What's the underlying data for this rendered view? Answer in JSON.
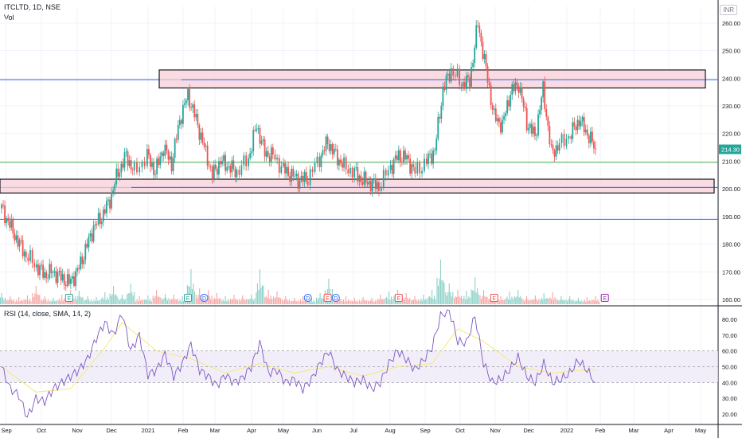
{
  "header": {
    "symbol": "ITCLTD, 1D, NSE",
    "volume_label": "Vol",
    "currency": "INR",
    "rsi_label": "RSI (14, close, SMA, 14, 2)"
  },
  "price_badge": "214.30",
  "colors": {
    "up": "#26a69a",
    "down": "#ef5350",
    "vol_up": "#8fd1c7",
    "vol_down": "#f5a6a4",
    "zone_fill": "#f8cfd8",
    "zone_border": "#131722",
    "blue_line": "#2962ff",
    "green_line": "#4caf50",
    "rsi_line": "#7e57c2",
    "rsi_ma": "#f5e97a",
    "rsi_band": "#ede7f6",
    "badge": "#26a69a",
    "earnings_up": "#26a69a",
    "earnings_down": "#ef5350",
    "earnings_future": "#9c27b0",
    "dividend": "#2962ff"
  },
  "chart_data": [
    {
      "type": "candlestick",
      "title": "ITCLTD, 1D, NSE",
      "x_labels": [
        "Sep",
        "Oct",
        "Nov",
        "Dec",
        "2021",
        "Feb",
        "Mar",
        "Apr",
        "May",
        "Jun",
        "Jul",
        "Aug",
        "Sep",
        "Oct",
        "Nov",
        "Dec",
        "2022",
        "Feb",
        "Mar",
        "Apr",
        "May"
      ],
      "y_ticks": [
        "260.00",
        "250.00",
        "240.00",
        "230.00",
        "220.00",
        "210.00",
        "200.00",
        "190.00",
        "180.00",
        "170.00",
        "160.00"
      ],
      "ylim": [
        158,
        266
      ],
      "series_close": [
        [
          "2020-09-01",
          193
        ],
        [
          "2020-09-08",
          187
        ],
        [
          "2020-09-15",
          181
        ],
        [
          "2020-09-22",
          176
        ],
        [
          "2020-10-01",
          172
        ],
        [
          "2020-10-08",
          169
        ],
        [
          "2020-10-15",
          170
        ],
        [
          "2020-10-22",
          168
        ],
        [
          "2020-10-29",
          166
        ],
        [
          "2020-11-05",
          170
        ],
        [
          "2020-11-12",
          178
        ],
        [
          "2020-11-19",
          186
        ],
        [
          "2020-11-26",
          190
        ],
        [
          "2020-12-03",
          196
        ],
        [
          "2020-12-10",
          206
        ],
        [
          "2020-12-17",
          212
        ],
        [
          "2020-12-24",
          206
        ],
        [
          "2021-01-04",
          212
        ],
        [
          "2021-01-11",
          206
        ],
        [
          "2021-01-18",
          215
        ],
        [
          "2021-01-25",
          209
        ],
        [
          "2021-02-01",
          225
        ],
        [
          "2021-02-08",
          234
        ],
        [
          "2021-02-15",
          225
        ],
        [
          "2021-02-22",
          215
        ],
        [
          "2021-03-01",
          205
        ],
        [
          "2021-03-08",
          210
        ],
        [
          "2021-03-15",
          208
        ],
        [
          "2021-03-22",
          206
        ],
        [
          "2021-04-01",
          211
        ],
        [
          "2021-04-08",
          223
        ],
        [
          "2021-04-15",
          213
        ],
        [
          "2021-04-22",
          212
        ],
        [
          "2021-05-01",
          207
        ],
        [
          "2021-05-08",
          205
        ],
        [
          "2021-05-15",
          203
        ],
        [
          "2021-05-22",
          204
        ],
        [
          "2021-06-01",
          211
        ],
        [
          "2021-06-08",
          217
        ],
        [
          "2021-06-15",
          212
        ],
        [
          "2021-06-22",
          208
        ],
        [
          "2021-07-01",
          206
        ],
        [
          "2021-07-08",
          203
        ],
        [
          "2021-07-15",
          202
        ],
        [
          "2021-07-22",
          201
        ],
        [
          "2021-08-01",
          208
        ],
        [
          "2021-08-08",
          212
        ],
        [
          "2021-08-15",
          211
        ],
        [
          "2021-08-22",
          206
        ],
        [
          "2021-09-01",
          210
        ],
        [
          "2021-09-08",
          214
        ],
        [
          "2021-09-15",
          236
        ],
        [
          "2021-09-22",
          243
        ],
        [
          "2021-10-01",
          238
        ],
        [
          "2021-10-08",
          239
        ],
        [
          "2021-10-15",
          260
        ],
        [
          "2021-10-22",
          243
        ],
        [
          "2021-10-29",
          226
        ],
        [
          "2021-11-05",
          223
        ],
        [
          "2021-11-12",
          235
        ],
        [
          "2021-11-19",
          238
        ],
        [
          "2021-11-26",
          224
        ],
        [
          "2021-12-03",
          219
        ],
        [
          "2021-12-10",
          236
        ],
        [
          "2021-12-17",
          213
        ],
        [
          "2021-12-24",
          216
        ],
        [
          "2022-01-03",
          220
        ],
        [
          "2022-01-10",
          225
        ],
        [
          "2022-01-17",
          220
        ],
        [
          "2022-01-24",
          214.3
        ]
      ],
      "last_price": 214.3,
      "zones": [
        {
          "from": 236.5,
          "to": 243
        },
        {
          "from": 198.5,
          "to": 203.5
        }
      ],
      "horizontal_lines": [
        {
          "value": 239.5,
          "color": "blue"
        },
        {
          "value": 200.5,
          "color": "blue"
        },
        {
          "value": 189,
          "color": "blue"
        },
        {
          "value": 209.6,
          "color": "green"
        }
      ],
      "event_markers": [
        {
          "label": "E",
          "date": "2020-10-29",
          "kind": "earnings_up"
        },
        {
          "label": "E",
          "date": "2021-02-08",
          "kind": "earnings_up"
        },
        {
          "label": "D",
          "date": "2021-02-22",
          "kind": "dividend"
        },
        {
          "label": "D",
          "date": "2021-05-22",
          "kind": "dividend"
        },
        {
          "label": "E",
          "date": "2021-06-08",
          "kind": "earnings_down"
        },
        {
          "label": "D",
          "date": "2021-06-15",
          "kind": "dividend"
        },
        {
          "label": "E",
          "date": "2021-08-08",
          "kind": "earnings_down"
        },
        {
          "label": "E",
          "date": "2021-10-29",
          "kind": "earnings_down"
        },
        {
          "label": "E",
          "date": "2022-02-01",
          "kind": "earnings_future"
        }
      ]
    },
    {
      "type": "line",
      "title": "RSI (14, close, SMA, 14, 2)",
      "y_ticks": [
        "80.00",
        "70.00",
        "60.00",
        "50.00",
        "40.00",
        "30.00",
        "20.00"
      ],
      "ylim": [
        14,
        88
      ],
      "bands": [
        60,
        50,
        40
      ],
      "series": [
        {
          "name": "RSI",
          "values": [
            [
              0,
              50
            ],
            [
              1,
              36
            ],
            [
              2,
              32
            ],
            [
              3,
              18
            ],
            [
              4,
              30
            ],
            [
              5,
              28
            ],
            [
              6,
              36
            ],
            [
              7,
              40
            ],
            [
              8,
              44
            ],
            [
              9,
              48
            ],
            [
              10,
              55
            ],
            [
              11,
              68
            ],
            [
              12,
              78
            ],
            [
              13,
              70
            ],
            [
              14,
              84
            ],
            [
              15,
              60
            ],
            [
              16,
              70
            ],
            [
              17,
              45
            ],
            [
              18,
              48
            ],
            [
              19,
              58
            ],
            [
              20,
              44
            ],
            [
              21,
              52
            ],
            [
              22,
              64
            ],
            [
              23,
              48
            ],
            [
              24,
              44
            ],
            [
              25,
              38
            ],
            [
              26,
              45
            ],
            [
              27,
              40
            ],
            [
              28,
              43
            ],
            [
              29,
              50
            ],
            [
              30,
              65
            ],
            [
              31,
              46
            ],
            [
              32,
              48
            ],
            [
              33,
              40
            ],
            [
              34,
              42
            ],
            [
              35,
              36
            ],
            [
              36,
              42
            ],
            [
              37,
              52
            ],
            [
              38,
              60
            ],
            [
              39,
              48
            ],
            [
              40,
              44
            ],
            [
              41,
              40
            ],
            [
              42,
              42
            ],
            [
              43,
              36
            ],
            [
              44,
              40
            ],
            [
              45,
              52
            ],
            [
              46,
              60
            ],
            [
              47,
              55
            ],
            [
              48,
              48
            ],
            [
              49,
              54
            ],
            [
              50,
              62
            ],
            [
              51,
              82
            ],
            [
              52,
              86
            ],
            [
              53,
              66
            ],
            [
              54,
              65
            ],
            [
              55,
              82
            ],
            [
              56,
              52
            ],
            [
              57,
              40
            ],
            [
              58,
              42
            ],
            [
              59,
              48
            ],
            [
              60,
              56
            ],
            [
              61,
              44
            ],
            [
              62,
              40
            ],
            [
              63,
              52
            ],
            [
              64,
              40
            ],
            [
              65,
              42
            ],
            [
              66,
              46
            ],
            [
              67,
              54
            ],
            [
              68,
              48
            ],
            [
              69,
              40
            ]
          ]
        },
        {
          "name": "SMA",
          "values": [
            [
              0,
              50
            ],
            [
              4,
              34
            ],
            [
              8,
              36
            ],
            [
              12,
              62
            ],
            [
              14,
              78
            ],
            [
              18,
              60
            ],
            [
              22,
              55
            ],
            [
              26,
              46
            ],
            [
              30,
              52
            ],
            [
              34,
              46
            ],
            [
              38,
              50
            ],
            [
              42,
              44
            ],
            [
              46,
              50
            ],
            [
              50,
              52
            ],
            [
              53,
              74
            ],
            [
              56,
              66
            ],
            [
              60,
              50
            ],
            [
              64,
              46
            ],
            [
              68,
              48
            ],
            [
              69,
              48
            ]
          ]
        }
      ]
    },
    {
      "type": "bar",
      "title": "Vol",
      "values_relative": [
        0.14,
        0.1,
        0.09,
        0.11,
        0.23,
        0.1,
        0.08,
        0.12,
        0.18,
        0.17,
        0.1,
        0.09,
        0.15,
        0.23,
        0.12,
        0.26,
        0.1,
        0.11,
        0.18,
        0.13,
        0.12,
        0.1,
        0.44,
        0.2,
        0.18,
        0.14,
        0.1,
        0.12,
        0.11,
        0.12,
        0.44,
        0.18,
        0.16,
        0.1,
        0.08,
        0.1,
        0.08,
        0.14,
        0.32,
        0.12,
        0.1,
        0.08,
        0.09,
        0.08,
        0.12,
        0.16,
        0.18,
        0.14,
        0.1,
        0.12,
        0.18,
        0.56,
        0.26,
        0.18,
        0.17,
        0.34,
        0.18,
        0.12,
        0.1,
        0.16,
        0.18,
        0.1,
        0.11,
        0.14,
        0.15,
        0.1,
        0.1,
        0.08,
        0.09,
        0.1
      ]
    }
  ]
}
